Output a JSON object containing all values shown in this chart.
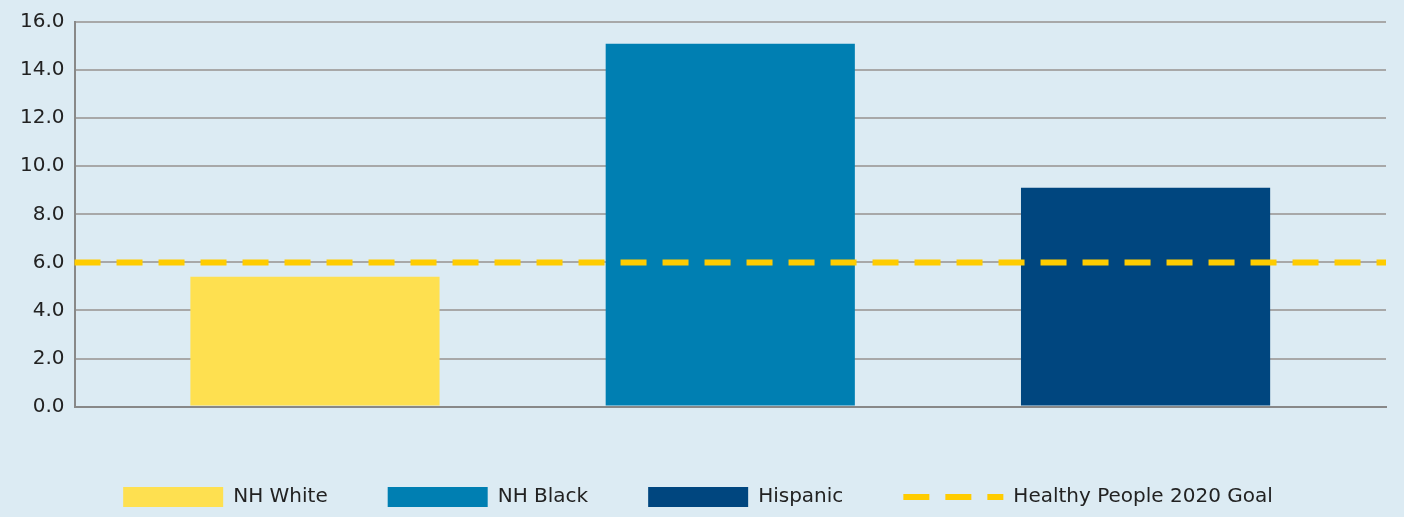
{
  "chart_data": {
    "type": "bar",
    "categories": [
      null
    ],
    "series": [
      {
        "name": "NH White",
        "color": "#fee050",
        "values": [
          5.4
        ]
      },
      {
        "name": "NH Black",
        "color": "#007fb2",
        "values": [
          15.1
        ]
      },
      {
        "name": "Hispanic",
        "color": "#00467f",
        "values": [
          9.1
        ]
      }
    ],
    "ylim": [
      0,
      16
    ],
    "yticks": [
      {
        "value": 0,
        "label": "0.0"
      },
      {
        "value": 2,
        "label": "2.0"
      },
      {
        "value": 4,
        "label": "4.0"
      },
      {
        "value": 6,
        "label": "6.0"
      },
      {
        "value": 8,
        "label": "8.0"
      },
      {
        "value": 10,
        "label": "10.0"
      },
      {
        "value": 12,
        "label": "12.0"
      },
      {
        "value": 14,
        "label": "14.0"
      },
      {
        "value": 16,
        "label": "16.0"
      }
    ],
    "ref_lines": [
      {
        "axis": "y",
        "value": 6,
        "label": "Healthy People 2020 Goal",
        "color": "#ffcc00",
        "line_style": "dashed"
      }
    ],
    "grid": "y",
    "legend": "bottom"
  }
}
